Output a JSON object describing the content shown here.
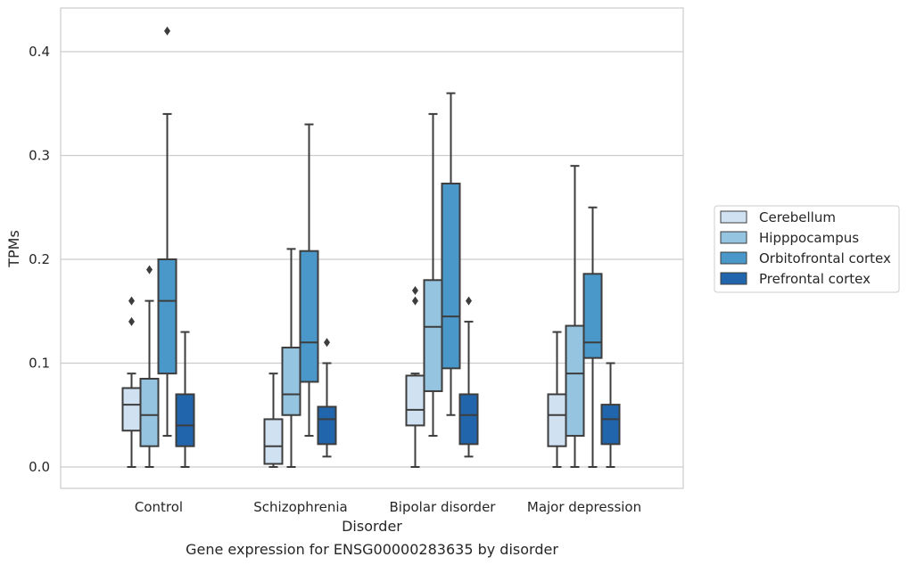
{
  "chart_data": {
    "type": "box",
    "title": "Gene expression for ENSG00000283635 by disorder",
    "xlabel": "Disorder",
    "ylabel": "TPMs",
    "categories": [
      "Control",
      "Schizophrenia",
      "Bipolar disorder",
      "Major depression"
    ],
    "ylim": [
      -0.02,
      0.44
    ],
    "yticks": [
      0.0,
      0.1,
      0.2,
      0.3,
      0.4
    ],
    "ytick_labels": [
      "0.0",
      "0.1",
      "0.2",
      "0.3",
      "0.4"
    ],
    "grid": "horizontal",
    "legend_position": "right",
    "series": [
      {
        "name": "Cerebellum",
        "color": "#d0e1f2",
        "boxes": [
          {
            "whislo": 0.0,
            "q1": 0.035,
            "med": 0.06,
            "q3": 0.076,
            "whishi": 0.09,
            "fliers": [
              0.14,
              0.16
            ]
          },
          {
            "whislo": 0.0,
            "q1": 0.003,
            "med": 0.02,
            "q3": 0.046,
            "whishi": 0.09,
            "fliers": []
          },
          {
            "whislo": 0.0,
            "q1": 0.04,
            "med": 0.055,
            "q3": 0.088,
            "whishi": 0.09,
            "fliers": [
              0.16,
              0.17
            ]
          },
          {
            "whislo": 0.0,
            "q1": 0.02,
            "med": 0.05,
            "q3": 0.07,
            "whishi": 0.13,
            "fliers": []
          }
        ]
      },
      {
        "name": "Hipppocampus",
        "color": "#94c4df",
        "boxes": [
          {
            "whislo": 0.0,
            "q1": 0.02,
            "med": 0.05,
            "q3": 0.085,
            "whishi": 0.16,
            "fliers": [
              0.19
            ]
          },
          {
            "whislo": 0.0,
            "q1": 0.05,
            "med": 0.07,
            "q3": 0.115,
            "whishi": 0.21,
            "fliers": []
          },
          {
            "whislo": 0.03,
            "q1": 0.073,
            "med": 0.135,
            "q3": 0.18,
            "whishi": 0.34,
            "fliers": []
          },
          {
            "whislo": 0.0,
            "q1": 0.03,
            "med": 0.09,
            "q3": 0.136,
            "whishi": 0.29,
            "fliers": []
          }
        ]
      },
      {
        "name": "Orbitofrontal cortex",
        "color": "#4a98c9",
        "boxes": [
          {
            "whislo": 0.03,
            "q1": 0.09,
            "med": 0.16,
            "q3": 0.2,
            "whishi": 0.34,
            "fliers": [
              0.42
            ]
          },
          {
            "whislo": 0.03,
            "q1": 0.082,
            "med": 0.12,
            "q3": 0.208,
            "whishi": 0.33,
            "fliers": []
          },
          {
            "whislo": 0.05,
            "q1": 0.095,
            "med": 0.145,
            "q3": 0.273,
            "whishi": 0.36,
            "fliers": []
          },
          {
            "whislo": 0.0,
            "q1": 0.105,
            "med": 0.12,
            "q3": 0.186,
            "whishi": 0.25,
            "fliers": []
          }
        ]
      },
      {
        "name": "Prefrontal cortex",
        "color": "#2166ac",
        "boxes": [
          {
            "whislo": 0.0,
            "q1": 0.02,
            "med": 0.04,
            "q3": 0.07,
            "whishi": 0.13,
            "fliers": []
          },
          {
            "whislo": 0.01,
            "q1": 0.022,
            "med": 0.046,
            "q3": 0.058,
            "whishi": 0.1,
            "fliers": [
              0.12
            ]
          },
          {
            "whislo": 0.01,
            "q1": 0.022,
            "med": 0.05,
            "q3": 0.07,
            "whishi": 0.14,
            "fliers": [
              0.16
            ]
          },
          {
            "whislo": 0.0,
            "q1": 0.022,
            "med": 0.046,
            "q3": 0.06,
            "whishi": 0.1,
            "fliers": []
          }
        ]
      }
    ]
  }
}
